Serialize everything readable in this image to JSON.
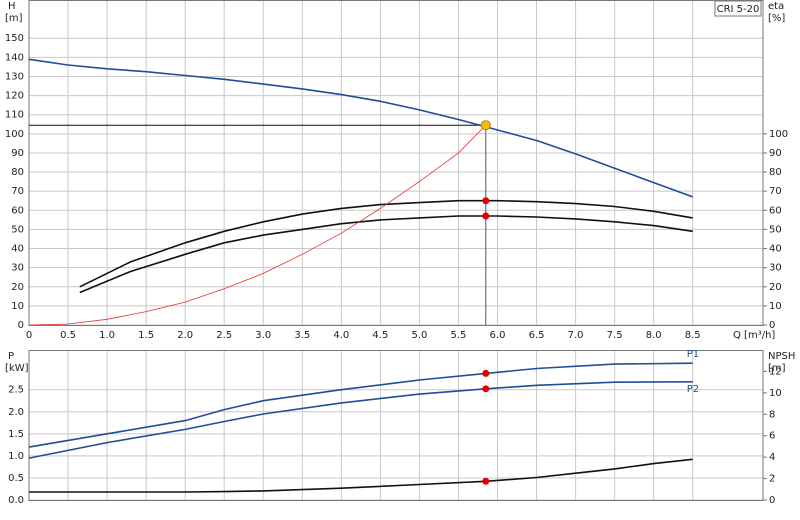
{
  "chart_data": [
    {
      "type": "line",
      "annotation": "CRI 5-20",
      "x_label": "Q [m³/h]",
      "y_label": "H",
      "y_unit": "[m]",
      "y2_label": "eta",
      "y2_unit": "[%]",
      "xlim": [
        0,
        9.4
      ],
      "xticks": [
        0,
        0.5,
        {
          "value": 1,
          "label": "1.0"
        },
        1.5,
        {
          "value": 2,
          "label": "2.0"
        },
        2.5,
        {
          "value": 3,
          "label": "3.0"
        },
        3.5,
        {
          "value": 4,
          "label": "4.0"
        },
        4.5,
        {
          "value": 5,
          "label": "5.0"
        },
        5.5,
        {
          "value": 6,
          "label": "6.0"
        },
        6.5,
        {
          "value": 7,
          "label": "7.0"
        },
        7.5,
        {
          "value": 8,
          "label": "8.0"
        },
        8.5
      ],
      "ylim": [
        0,
        170
      ],
      "yticks": [
        0,
        10,
        20,
        30,
        40,
        50,
        60,
        70,
        80,
        90,
        100,
        110,
        120,
        130,
        140,
        150
      ],
      "y2lim": [
        0,
        170
      ],
      "y2ticks": [
        0,
        10,
        20,
        30,
        40,
        50,
        60,
        70,
        80,
        90,
        100
      ],
      "grid": true,
      "series": [
        {
          "color": "#1f4e96",
          "x": [
            0,
            0.5,
            1,
            1.5,
            2,
            2.5,
            3,
            3.5,
            4,
            4.5,
            5,
            5.5,
            6,
            6.5,
            7,
            7.5,
            8,
            8.5
          ],
          "values": [
            139,
            136,
            134,
            132.5,
            130.5,
            128.5,
            126,
            123.5,
            120.5,
            117,
            112.5,
            107.5,
            102,
            96.5,
            89.5,
            82,
            74.5,
            67
          ]
        },
        {
          "color": "#111111",
          "axis": "y2",
          "x": [
            0.65,
            1.3,
            2,
            2.5,
            3,
            3.5,
            4,
            4.5,
            5,
            5.5,
            6,
            6.5,
            7,
            7.5,
            8,
            8.5
          ],
          "values": [
            20,
            33,
            43,
            49,
            54,
            58,
            61,
            63,
            64,
            65,
            65,
            64.5,
            63.5,
            62,
            59.5,
            56
          ]
        },
        {
          "color": "#111111",
          "axis": "y2",
          "x": [
            0.65,
            1.3,
            2,
            2.5,
            3,
            3.5,
            4,
            4.5,
            5,
            5.5,
            6,
            6.5,
            7,
            7.5,
            8,
            8.5
          ],
          "values": [
            17,
            28,
            37,
            43,
            47,
            50,
            53,
            55,
            56,
            57,
            57,
            56.5,
            55.5,
            54,
            52,
            49
          ]
        },
        {
          "color": "#e83030",
          "x": [
            0,
            0.5,
            1,
            1.5,
            2,
            2.5,
            3,
            3.5,
            4,
            4.5,
            5,
            5.5,
            5.85
          ],
          "values": [
            0,
            0.5,
            3,
            7,
            12,
            19,
            27,
            37,
            48,
            61,
            75,
            90,
            104.5
          ]
        }
      ],
      "duty_point": {
        "x": 5.85,
        "y": 104.5,
        "color": "#f5c000"
      },
      "points": [
        {
          "x": 5.85,
          "y": 65,
          "axis": "y2",
          "color": "#e00000"
        },
        {
          "x": 5.85,
          "y": 57,
          "axis": "y2",
          "color": "#e00000"
        }
      ]
    },
    {
      "type": "line",
      "y_label": "P",
      "y_unit": "[kW]",
      "y2_label": "NPSH",
      "y2_unit": "[m]",
      "xlim": [
        0,
        9.4
      ],
      "ylim": [
        0,
        3.4
      ],
      "yticks": [
        {
          "value": 0,
          "label": "0.0"
        },
        0.5,
        {
          "value": 1,
          "label": "1.0"
        },
        1.5,
        {
          "value": 2,
          "label": "2.0"
        },
        2.5
      ],
      "y2lim": [
        0,
        14
      ],
      "y2ticks": [
        0,
        2,
        4,
        6,
        8,
        10,
        12
      ],
      "grid": true,
      "series": [
        {
          "name": "P1",
          "color": "#1f4e96",
          "x": [
            0,
            1,
            2,
            2.5,
            3,
            4,
            5,
            5.85,
            6.5,
            7.5,
            8.5
          ],
          "values": [
            1.2,
            1.5,
            1.8,
            2.05,
            2.25,
            2.5,
            2.72,
            2.87,
            2.98,
            3.08,
            3.1
          ]
        },
        {
          "name": "P2",
          "color": "#1f4e96",
          "x": [
            0,
            1,
            2,
            2.5,
            3,
            4,
            5,
            5.85,
            6.5,
            7.5,
            8.5
          ],
          "values": [
            0.95,
            1.3,
            1.6,
            1.78,
            1.95,
            2.2,
            2.4,
            2.52,
            2.6,
            2.67,
            2.68
          ]
        },
        {
          "color": "#111111",
          "axis": "y2",
          "x": [
            0,
            1,
            2,
            2.5,
            3,
            4,
            5,
            5.85,
            6.5,
            7,
            7.5,
            8,
            8.5
          ],
          "values": [
            0.75,
            0.75,
            0.75,
            0.78,
            0.85,
            1.1,
            1.45,
            1.75,
            2.1,
            2.5,
            2.9,
            3.4,
            3.8
          ]
        }
      ],
      "points": [
        {
          "x": 5.85,
          "y": 2.87,
          "color": "#e00000"
        },
        {
          "x": 5.85,
          "y": 2.52,
          "color": "#e00000"
        },
        {
          "x": 5.85,
          "y": 1.75,
          "axis": "y2",
          "color": "#e00000"
        }
      ]
    }
  ]
}
